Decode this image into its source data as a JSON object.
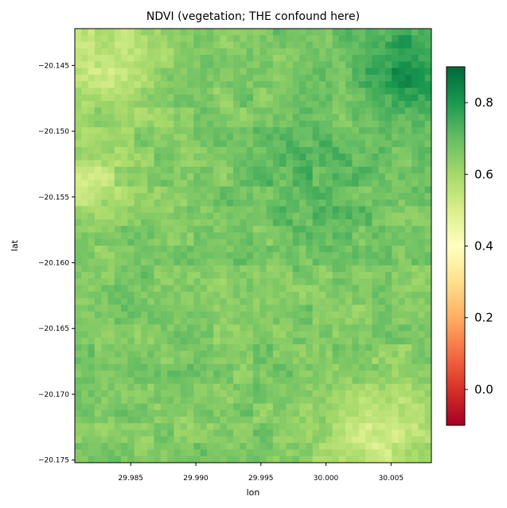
{
  "chart_data": {
    "type": "heatmap",
    "title": "NDVI (vegetation; THE confound here)",
    "xlabel": "lon",
    "ylabel": "lat",
    "xlim": [
      29.9807,
      30.0081
    ],
    "ylim": [
      -20.1752,
      -20.1422
    ],
    "x_ticks": [
      {
        "value": 29.985,
        "label": "29.985"
      },
      {
        "value": 29.99,
        "label": "29.990"
      },
      {
        "value": 29.995,
        "label": "29.995"
      },
      {
        "value": 30.0,
        "label": "30.000"
      },
      {
        "value": 30.005,
        "label": "30.005"
      }
    ],
    "y_ticks": [
      {
        "value": -20.145,
        "label": "−20.145"
      },
      {
        "value": -20.15,
        "label": "−20.150"
      },
      {
        "value": -20.155,
        "label": "−20.155"
      },
      {
        "value": -20.16,
        "label": "−20.160"
      },
      {
        "value": -20.165,
        "label": "−20.165"
      },
      {
        "value": -20.17,
        "label": "−20.170"
      },
      {
        "value": -20.175,
        "label": "−20.175"
      }
    ],
    "colorbar": {
      "cmap": "RdYlGn",
      "vmin": -0.1,
      "vmax": 0.9,
      "ticks": [
        {
          "value": 0.0,
          "label": "0.0"
        },
        {
          "value": 0.2,
          "label": "0.2"
        },
        {
          "value": 0.4,
          "label": "0.4"
        },
        {
          "value": 0.6,
          "label": "0.6"
        },
        {
          "value": 0.8,
          "label": "0.8"
        }
      ]
    },
    "columns": 54,
    "rows": 66,
    "base_value": 0.66,
    "regions": [
      {
        "name": "north-west",
        "lon": 29.9835,
        "lat": -20.1445,
        "spread": 0.004,
        "value": 0.54
      },
      {
        "name": "west-edge",
        "lon": 29.9815,
        "lat": -20.154,
        "spread": 0.003,
        "value": 0.53
      },
      {
        "name": "north-east",
        "lon": 30.0065,
        "lat": -20.1455,
        "spread": 0.004,
        "value": 0.8
      },
      {
        "name": "south-east",
        "lon": 30.004,
        "lat": -20.173,
        "spread": 0.004,
        "value": 0.52
      },
      {
        "name": "center",
        "lon": 29.999,
        "lat": -20.154,
        "spread": 0.005,
        "value": 0.72
      }
    ]
  }
}
